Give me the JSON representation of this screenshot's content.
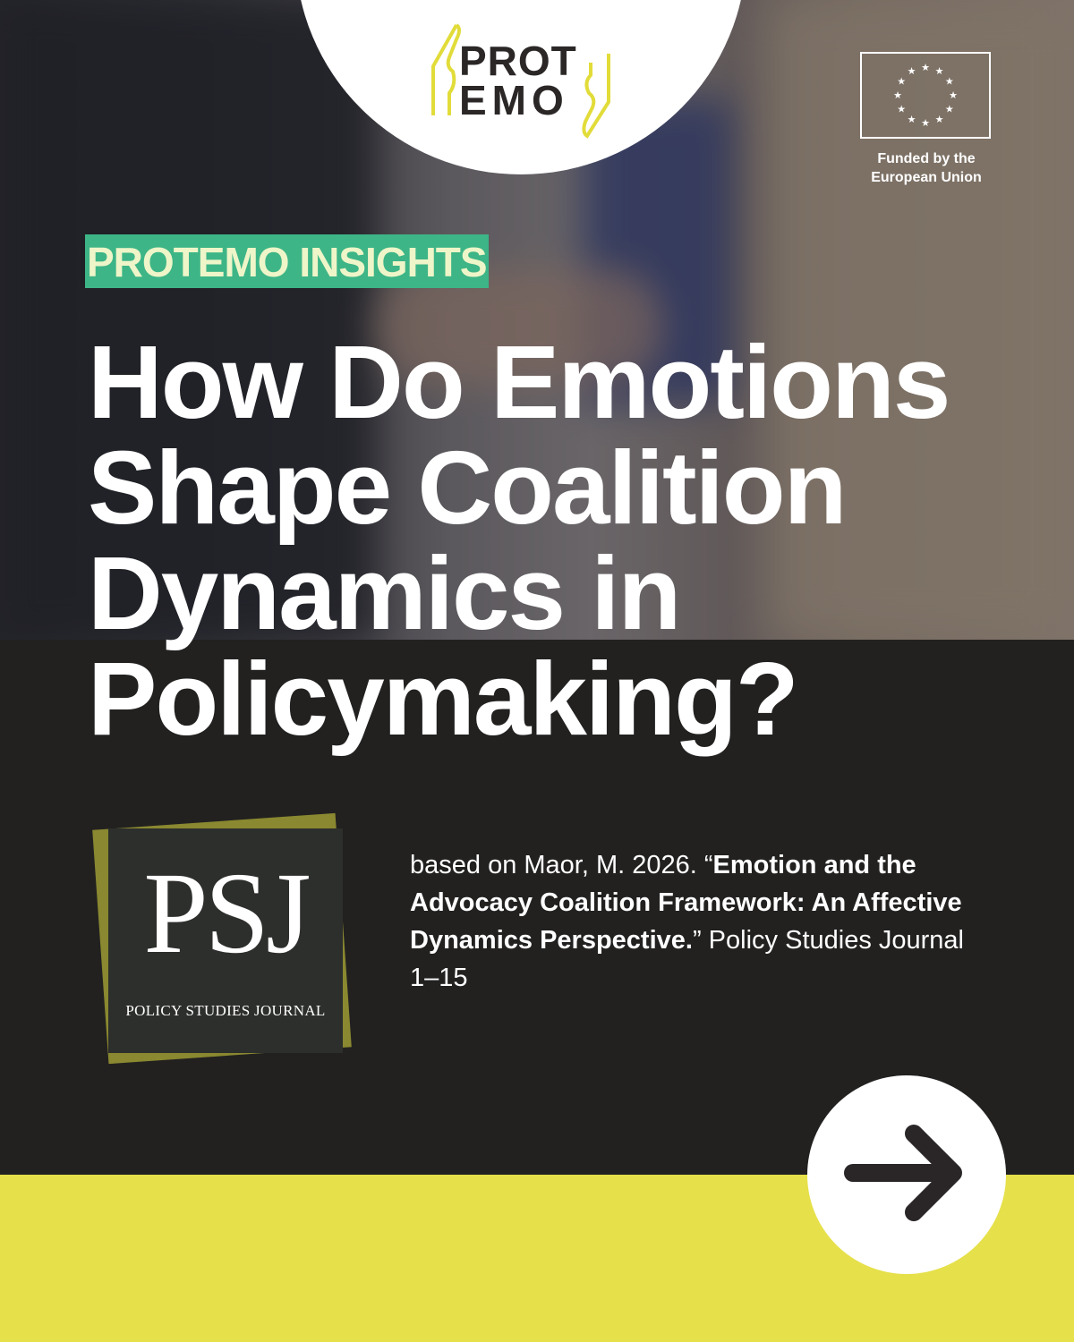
{
  "brand": {
    "logo_line1": "PROT",
    "logo_line2": "EMO",
    "accent_yellow": "#e6e04a",
    "accent_green": "#3db587"
  },
  "funding": {
    "line1": "Funded by the",
    "line2": "European Union",
    "icon": "eu-flag-icon"
  },
  "badge": "PROTEMO INSIGHTS",
  "headline": {
    "lines": [
      "How Do Emotions",
      "Shape Coalition",
      "Dynamics in",
      "Policymaking?"
    ]
  },
  "journal": {
    "abbrev": "PSJ",
    "name": "POLICY STUDIES JOURNAL"
  },
  "citation": {
    "prefix": "based on Maor, M. 2026. “",
    "title": "Emotion and the Advocacy Coalition Framework: An Affective Dynamics Perspective.",
    "suffix": "” Policy Studies Journal 1–15"
  },
  "next_button": {
    "icon": "arrow-right-icon"
  }
}
